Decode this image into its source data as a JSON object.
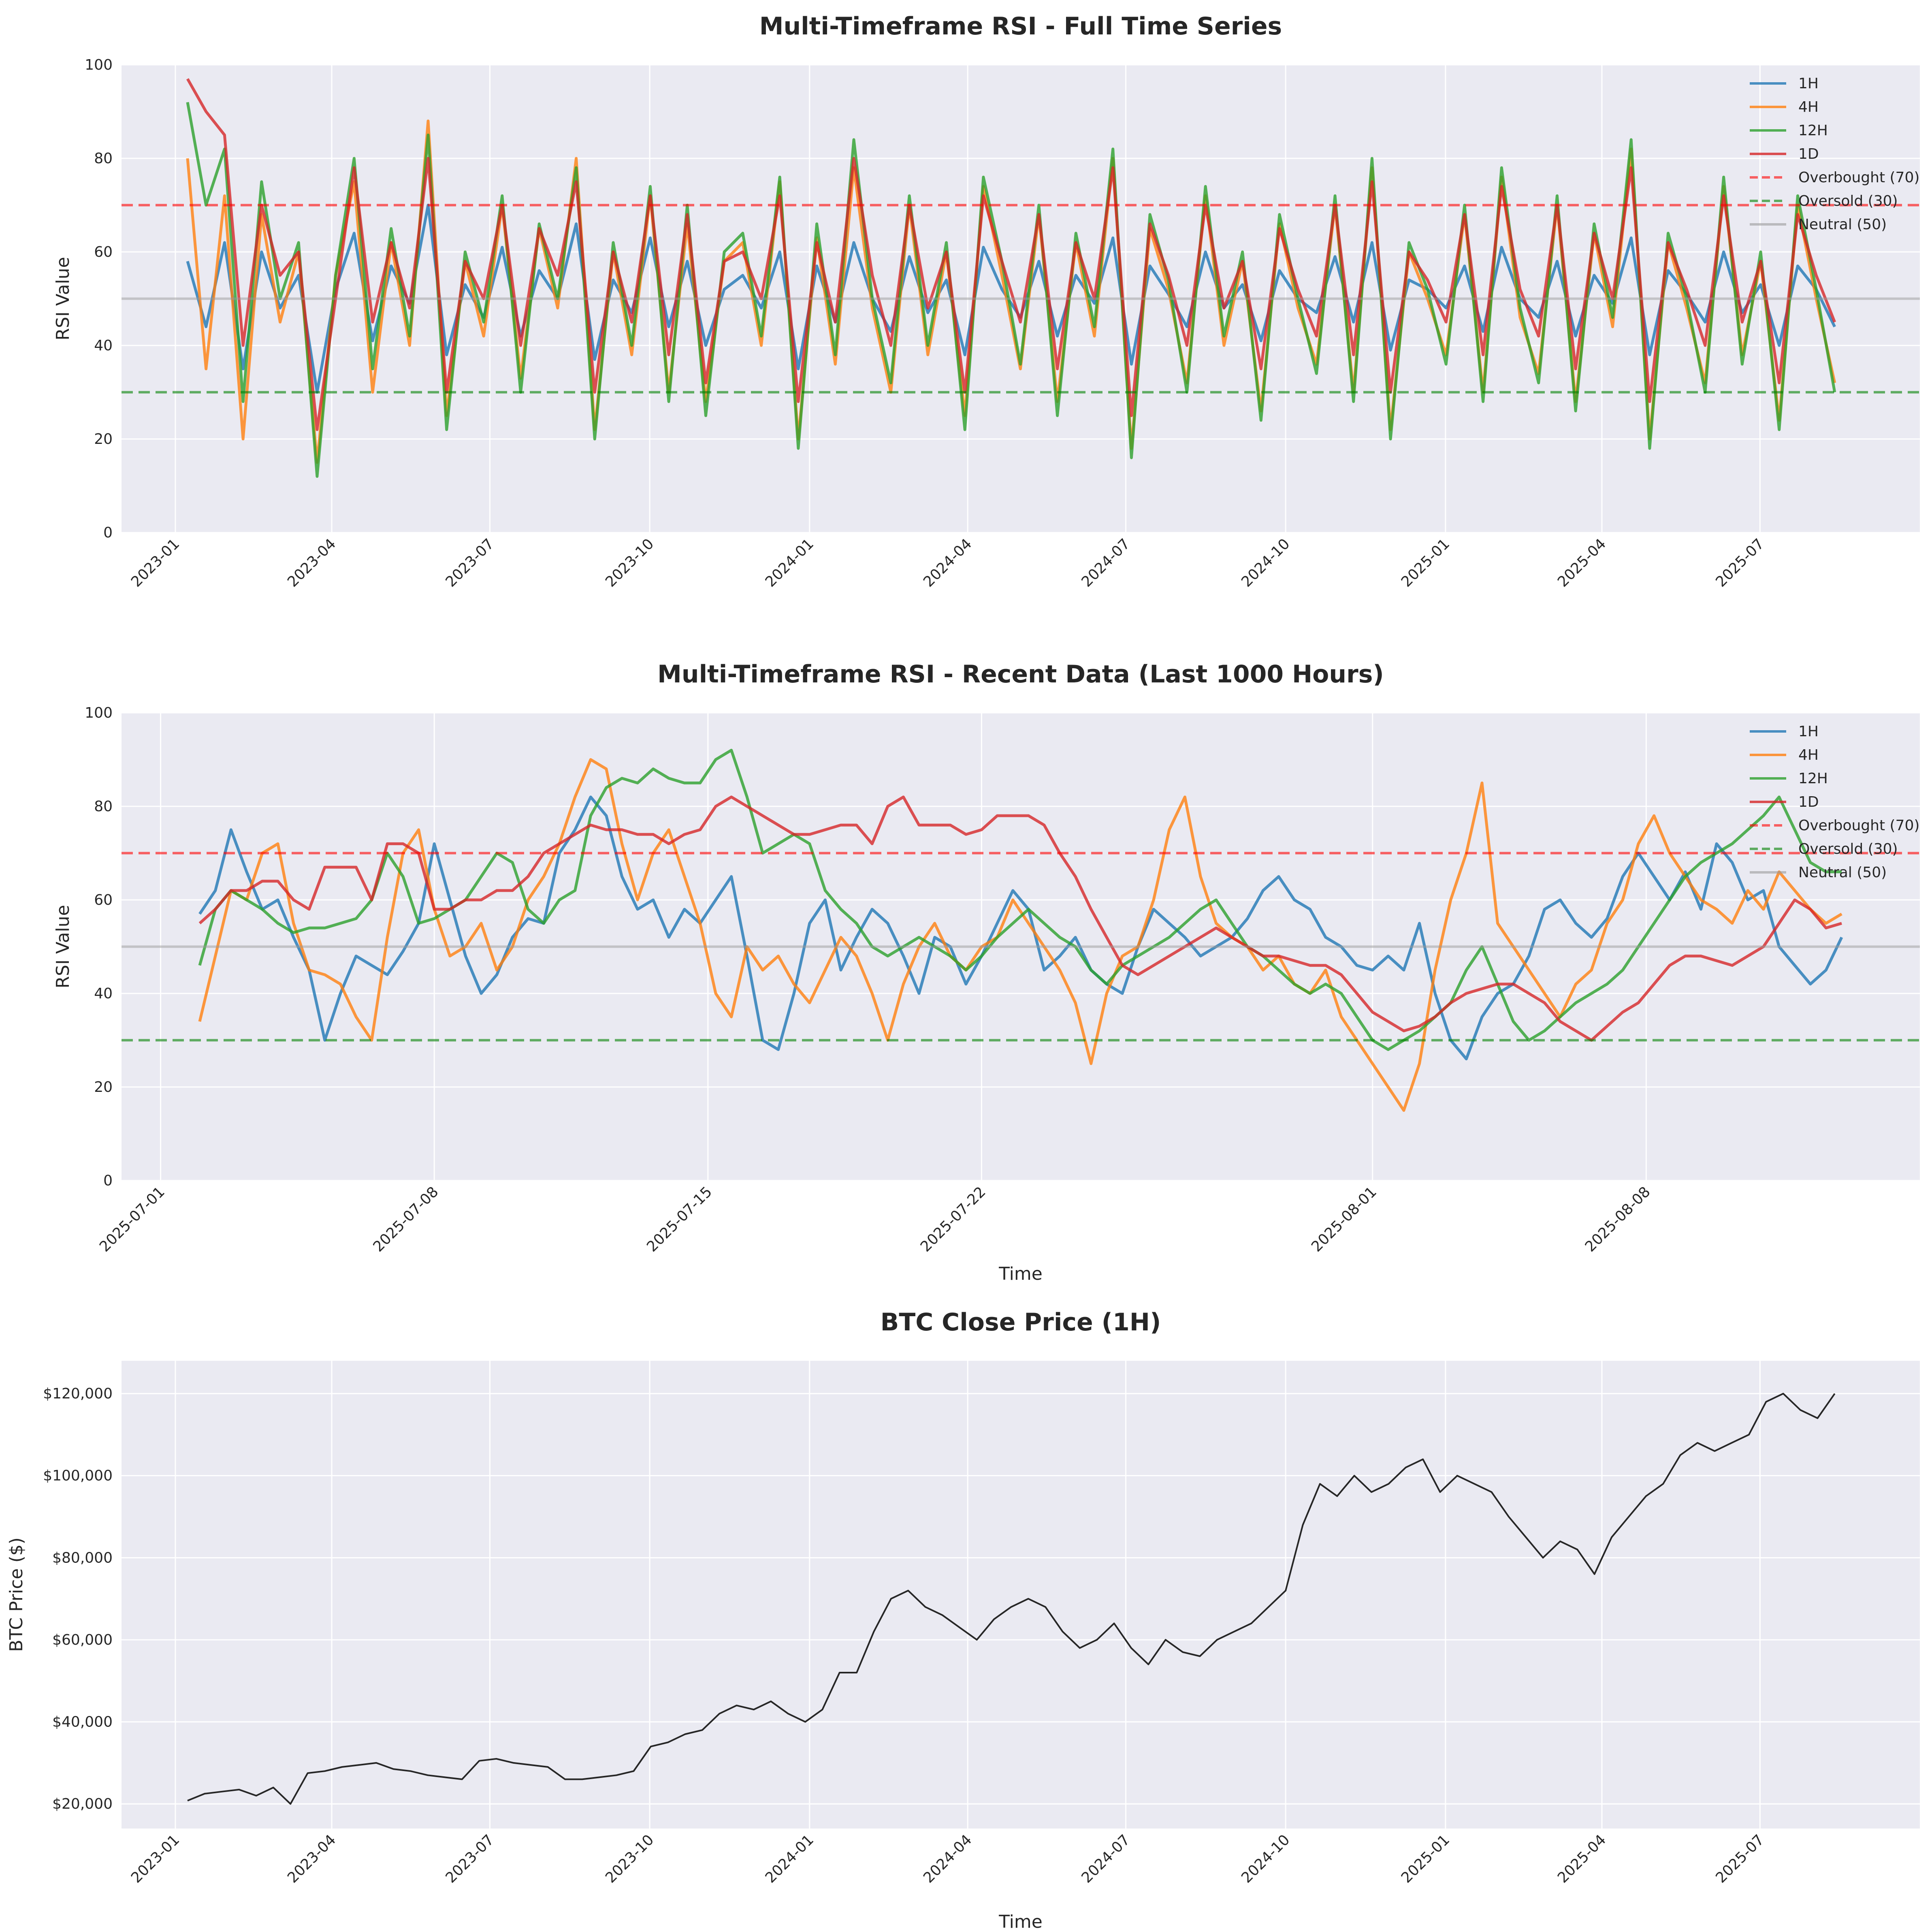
{
  "chart_data": [
    {
      "type": "line",
      "title": "Multi-Timeframe RSI - Full Time Series",
      "xlabel": "",
      "ylabel": "RSI Value",
      "x_range": [
        "2022-12-01",
        "2025-10-01"
      ],
      "ylim": [
        0,
        100
      ],
      "x_tick_labels": [
        "2023-01",
        "2023-04",
        "2023-07",
        "2023-10",
        "2024-01",
        "2024-04",
        "2024-07",
        "2024-10",
        "2025-01",
        "2025-04",
        "2025-07"
      ],
      "y_tick_labels": [
        "0",
        "20",
        "40",
        "60",
        "80",
        "100"
      ],
      "grid": true,
      "legend_position": "top-right",
      "series": [
        {
          "name": "1H",
          "color": "#1f77b4",
          "style": "solid",
          "values": [
            58,
            44,
            62,
            35,
            60,
            48,
            55,
            30,
            52,
            64,
            41,
            57,
            49,
            70,
            38,
            53,
            46,
            61,
            42,
            56,
            50,
            66,
            37,
            54,
            47,
            63,
            44,
            58,
            40,
            52,
            55,
            48,
            60,
            35,
            57,
            45,
            62,
            50,
            43,
            59,
            47,
            54,
            38,
            61,
            52,
            46,
            58,
            42,
            55,
            49,
            63,
            36,
            57,
            51,
            44,
            60,
            48,
            53,
            41,
            56,
            50,
            47,
            59,
            45,
            62,
            39,
            54,
            52,
            48,
            57,
            43,
            61,
            50,
            46,
            58,
            42,
            55,
            49,
            63,
            38,
            56,
            51,
            45,
            60,
            47,
            53,
            40,
            57,
            52,
            44
          ]
        },
        {
          "name": "4H",
          "color": "#ff7f0e",
          "style": "solid",
          "values": [
            80,
            35,
            72,
            20,
            68,
            45,
            60,
            15,
            55,
            75,
            30,
            62,
            40,
            88,
            25,
            58,
            42,
            70,
            33,
            65,
            48,
            80,
            22,
            60,
            38,
            72,
            30,
            66,
            28,
            58,
            62,
            40,
            75,
            20,
            63,
            36,
            78,
            48,
            30,
            70,
            38,
            60,
            25,
            74,
            55,
            35,
            68,
            28,
            62,
            42,
            80,
            18,
            65,
            52,
            32,
            72,
            40,
            58,
            26,
            66,
            48,
            36,
            70,
            30,
            78,
            22,
            60,
            50,
            38,
            68,
            30,
            76,
            46,
            34,
            70,
            28,
            64,
            44,
            82,
            20,
            62,
            48,
            32,
            74,
            38,
            58,
            24,
            70,
            50,
            32
          ]
        },
        {
          "name": "12H",
          "color": "#2ca02c",
          "style": "solid",
          "values": [
            92,
            70,
            82,
            28,
            75,
            50,
            62,
            12,
            55,
            80,
            35,
            65,
            42,
            85,
            22,
            60,
            45,
            72,
            30,
            66,
            50,
            78,
            20,
            62,
            40,
            74,
            28,
            70,
            25,
            60,
            64,
            42,
            76,
            18,
            66,
            38,
            84,
            50,
            32,
            72,
            40,
            62,
            22,
            76,
            58,
            36,
            70,
            25,
            64,
            44,
            82,
            16,
            68,
            54,
            30,
            74,
            42,
            60,
            24,
            68,
            50,
            34,
            72,
            28,
            80,
            20,
            62,
            52,
            36,
            70,
            28,
            78,
            48,
            32,
            72,
            26,
            66,
            46,
            84,
            18,
            64,
            50,
            30,
            76,
            36,
            60,
            22,
            72,
            52,
            30
          ]
        },
        {
          "name": "1D",
          "color": "#d62728",
          "style": "solid",
          "values": [
            97,
            90,
            85,
            40,
            70,
            55,
            60,
            22,
            50,
            78,
            45,
            62,
            48,
            80,
            30,
            58,
            50,
            70,
            40,
            65,
            55,
            75,
            30,
            60,
            45,
            72,
            38,
            68,
            32,
            58,
            60,
            50,
            72,
            28,
            62,
            45,
            80,
            55,
            40,
            70,
            48,
            60,
            30,
            72,
            58,
            45,
            68,
            35,
            62,
            50,
            78,
            25,
            66,
            55,
            40,
            70,
            48,
            58,
            35,
            65,
            52,
            42,
            70,
            38,
            75,
            30,
            60,
            54,
            45,
            68,
            38,
            74,
            52,
            42,
            70,
            35,
            64,
            50,
            78,
            28,
            62,
            52,
            40,
            72,
            45,
            58,
            32,
            68,
            55,
            45
          ]
        },
        {
          "name": "Overbought (70)",
          "color": "#ff0000",
          "style": "dashed",
          "value": 70
        },
        {
          "name": "Oversold (30)",
          "color": "#008000",
          "style": "dashed",
          "value": 30
        },
        {
          "name": "Neutral (50)",
          "color": "#999999",
          "style": "solid",
          "value": 50
        }
      ]
    },
    {
      "type": "line",
      "title": "Multi-Timeframe RSI - Recent Data (Last 1000 Hours)",
      "xlabel": "Time",
      "ylabel": "RSI Value",
      "x_range": [
        "2025-06-30",
        "2025-08-15"
      ],
      "ylim": [
        0,
        100
      ],
      "x_tick_labels": [
        "2025-07-01",
        "2025-07-08",
        "2025-07-15",
        "2025-07-22",
        "2025-08-01",
        "2025-08-08"
      ],
      "y_tick_labels": [
        "0",
        "20",
        "40",
        "60",
        "80",
        "100"
      ],
      "grid": true,
      "legend_position": "top-right",
      "series": [
        {
          "name": "1H",
          "color": "#1f77b4",
          "style": "solid",
          "values": [
            57,
            62,
            75,
            66,
            58,
            60,
            52,
            45,
            30,
            40,
            48,
            46,
            44,
            49,
            55,
            72,
            60,
            48,
            40,
            44,
            52,
            56,
            55,
            70,
            75,
            82,
            78,
            65,
            58,
            60,
            52,
            58,
            55,
            60,
            65,
            48,
            30,
            28,
            40,
            55,
            60,
            45,
            52,
            58,
            55,
            48,
            40,
            52,
            50,
            42,
            48,
            55,
            62,
            58,
            45,
            48,
            52,
            45,
            42,
            40,
            50,
            58,
            55,
            52,
            48,
            50,
            52,
            56,
            62,
            65,
            60,
            58,
            52,
            50,
            46,
            45,
            48,
            45,
            55,
            40,
            30,
            26,
            35,
            40,
            42,
            48,
            58,
            60,
            55,
            52,
            56,
            65,
            70,
            65,
            60,
            66,
            58,
            72,
            68,
            60,
            62,
            50,
            46,
            42,
            45,
            52
          ]
        },
        {
          "name": "4H",
          "color": "#ff7f0e",
          "style": "solid",
          "values": [
            34,
            48,
            62,
            60,
            70,
            72,
            55,
            45,
            44,
            42,
            35,
            30,
            52,
            70,
            75,
            58,
            48,
            50,
            55,
            45,
            50,
            60,
            65,
            72,
            82,
            90,
            88,
            72,
            60,
            70,
            75,
            65,
            55,
            40,
            35,
            50,
            45,
            48,
            42,
            38,
            45,
            52,
            48,
            40,
            30,
            42,
            50,
            55,
            48,
            45,
            50,
            52,
            60,
            55,
            50,
            45,
            38,
            25,
            40,
            48,
            50,
            60,
            75,
            82,
            65,
            55,
            52,
            50,
            45,
            48,
            42,
            40,
            45,
            35,
            30,
            25,
            20,
            15,
            25,
            45,
            60,
            70,
            85,
            55,
            50,
            45,
            40,
            35,
            42,
            45,
            55,
            60,
            72,
            78,
            70,
            65,
            60,
            58,
            55,
            62,
            58,
            66,
            62,
            58,
            55,
            57
          ]
        },
        {
          "name": "12H",
          "color": "#2ca02c",
          "style": "solid",
          "values": [
            46,
            58,
            62,
            60,
            58,
            55,
            53,
            54,
            54,
            55,
            56,
            60,
            70,
            65,
            55,
            56,
            58,
            60,
            65,
            70,
            68,
            58,
            55,
            60,
            62,
            78,
            84,
            86,
            85,
            88,
            86,
            85,
            85,
            90,
            92,
            82,
            70,
            72,
            74,
            72,
            62,
            58,
            55,
            50,
            48,
            50,
            52,
            50,
            48,
            45,
            48,
            52,
            55,
            58,
            55,
            52,
            50,
            45,
            42,
            46,
            48,
            50,
            52,
            55,
            58,
            60,
            55,
            50,
            48,
            45,
            42,
            40,
            42,
            40,
            35,
            30,
            28,
            30,
            32,
            35,
            38,
            45,
            50,
            42,
            34,
            30,
            32,
            35,
            38,
            40,
            42,
            45,
            50,
            55,
            60,
            65,
            68,
            70,
            72,
            75,
            78,
            82,
            75,
            68,
            66,
            66
          ]
        },
        {
          "name": "1D",
          "color": "#d62728",
          "style": "solid",
          "values": [
            55,
            58,
            62,
            62,
            64,
            64,
            60,
            58,
            67,
            67,
            67,
            60,
            72,
            72,
            70,
            58,
            58,
            60,
            60,
            62,
            62,
            65,
            70,
            72,
            74,
            76,
            75,
            75,
            74,
            74,
            72,
            74,
            75,
            80,
            82,
            80,
            78,
            76,
            74,
            74,
            75,
            76,
            76,
            72,
            80,
            82,
            76,
            76,
            76,
            74,
            75,
            78,
            78,
            78,
            76,
            70,
            65,
            58,
            52,
            46,
            44,
            46,
            48,
            50,
            52,
            54,
            52,
            50,
            48,
            48,
            47,
            46,
            46,
            44,
            40,
            36,
            34,
            32,
            33,
            35,
            38,
            40,
            41,
            42,
            42,
            40,
            38,
            34,
            32,
            30,
            33,
            36,
            38,
            42,
            46,
            48,
            48,
            47,
            46,
            48,
            50,
            55,
            60,
            58,
            54,
            55
          ]
        },
        {
          "name": "Overbought (70)",
          "color": "#ff0000",
          "style": "dashed",
          "value": 70
        },
        {
          "name": "Oversold (30)",
          "color": "#008000",
          "style": "dashed",
          "value": 30
        },
        {
          "name": "Neutral (50)",
          "color": "#999999",
          "style": "solid",
          "value": 50
        }
      ]
    },
    {
      "type": "line",
      "title": "BTC Close Price (1H)",
      "xlabel": "Time",
      "ylabel": "BTC Price ($)",
      "x_range": [
        "2022-12-01",
        "2025-10-01"
      ],
      "ylim": [
        14000,
        128000
      ],
      "x_tick_labels": [
        "2023-01",
        "2023-04",
        "2023-07",
        "2023-10",
        "2024-01",
        "2024-04",
        "2024-07",
        "2024-10",
        "2025-01",
        "2025-04",
        "2025-07"
      ],
      "y_tick_labels": [
        "$20,000",
        "$40,000",
        "$60,000",
        "$80,000",
        "$100,000",
        "$120,000"
      ],
      "grid": true,
      "series": [
        {
          "name": "",
          "color": "#262626",
          "style": "solid",
          "values": [
            20800,
            22500,
            23000,
            23500,
            22000,
            24000,
            20000,
            27500,
            28000,
            29000,
            29500,
            30000,
            28500,
            28000,
            27000,
            26500,
            26000,
            30500,
            31000,
            30000,
            29500,
            29000,
            26000,
            26000,
            26500,
            27000,
            28000,
            34000,
            35000,
            37000,
            38000,
            42000,
            44000,
            43000,
            45000,
            42000,
            40000,
            43000,
            52000,
            52000,
            62000,
            70000,
            72000,
            68000,
            66000,
            63000,
            60000,
            65000,
            68000,
            70000,
            68000,
            62000,
            58000,
            60000,
            64000,
            58000,
            54000,
            60000,
            57000,
            56000,
            60000,
            62000,
            64000,
            68000,
            72000,
            88000,
            98000,
            95000,
            100000,
            96000,
            98000,
            102000,
            104000,
            96000,
            100000,
            98000,
            96000,
            90000,
            85000,
            80000,
            84000,
            82000,
            76000,
            85000,
            90000,
            95000,
            98000,
            105000,
            108000,
            106000,
            108000,
            110000,
            118000,
            120000,
            116000,
            114000,
            120000
          ]
        }
      ]
    }
  ]
}
